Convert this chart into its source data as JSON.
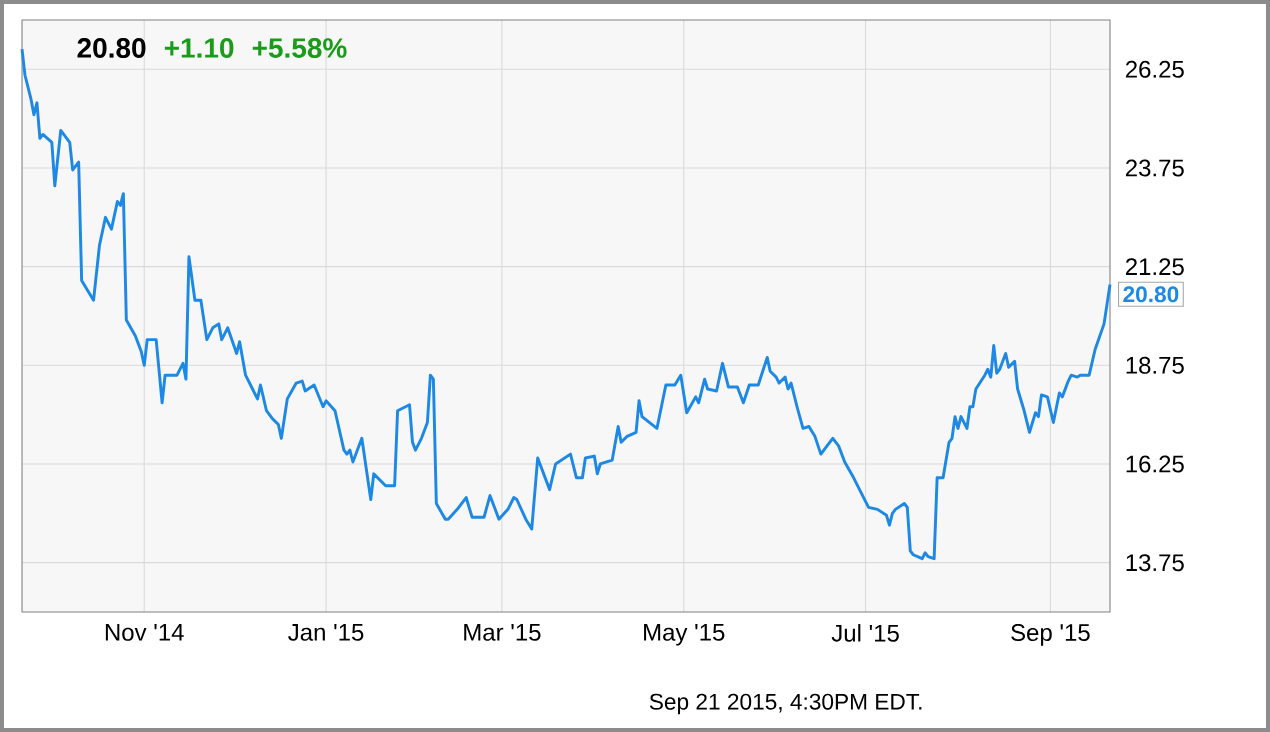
{
  "chart_data": {
    "type": "line",
    "color": "#1e88e5",
    "grid": true,
    "xlim": [
      "2014-09-21",
      "2015-09-21"
    ],
    "ylim": [
      12.5,
      27.5
    ],
    "xticks": [
      {
        "value": "2014-11-01",
        "label": "Nov '14"
      },
      {
        "value": "2015-01-01",
        "label": "Jan '15"
      },
      {
        "value": "2015-03-01",
        "label": "Mar '15"
      },
      {
        "value": "2015-05-01",
        "label": "May '15"
      },
      {
        "value": "2015-07-01",
        "label": "Jul '15"
      },
      {
        "value": "2015-09-01",
        "label": "Sep '15"
      }
    ],
    "yticks": [
      13.75,
      16.25,
      18.75,
      21.25,
      23.75,
      26.25
    ],
    "x": [
      "2014-09-21",
      "2014-09-22",
      "2014-09-24",
      "2014-09-25",
      "2014-09-26",
      "2014-09-27",
      "2014-09-28",
      "2014-10-01",
      "2014-10-02",
      "2014-10-04",
      "2014-10-07",
      "2014-10-08",
      "2014-10-10",
      "2014-10-11",
      "2014-10-15",
      "2014-10-17",
      "2014-10-19",
      "2014-10-21",
      "2014-10-23",
      "2014-10-24",
      "2014-10-25",
      "2014-10-26",
      "2014-10-29",
      "2014-10-31",
      "2014-11-01",
      "2014-11-02",
      "2014-11-05",
      "2014-11-07",
      "2014-11-08",
      "2014-11-12",
      "2014-11-14",
      "2014-11-15",
      "2014-11-16",
      "2014-11-18",
      "2014-11-20",
      "2014-11-22",
      "2014-11-24",
      "2014-11-26",
      "2014-11-27",
      "2014-11-29",
      "2014-12-02",
      "2014-12-03",
      "2014-12-05",
      "2014-12-07",
      "2014-12-09",
      "2014-12-10",
      "2014-12-12",
      "2014-12-14",
      "2014-12-16",
      "2014-12-17",
      "2014-12-19",
      "2014-12-22",
      "2014-12-24",
      "2014-12-25",
      "2014-12-28",
      "2014-12-31",
      "2015-01-01",
      "2015-01-04",
      "2015-01-07",
      "2015-01-08",
      "2015-01-09",
      "2015-01-10",
      "2015-01-13",
      "2015-01-16",
      "2015-01-17",
      "2015-01-21",
      "2015-01-24",
      "2015-01-25",
      "2015-01-29",
      "2015-01-30",
      "2015-01-31",
      "2015-02-02",
      "2015-02-04",
      "2015-02-05",
      "2015-02-06",
      "2015-02-07",
      "2015-02-10",
      "2015-02-11",
      "2015-02-14",
      "2015-02-17",
      "2015-02-19",
      "2015-02-23",
      "2015-02-25",
      "2015-02-26",
      "2015-02-28",
      "2015-03-03",
      "2015-03-05",
      "2015-03-06",
      "2015-03-09",
      "2015-03-11",
      "2015-03-13",
      "2015-03-17",
      "2015-03-19",
      "2015-03-24",
      "2015-03-26",
      "2015-03-28",
      "2015-03-29",
      "2015-04-01",
      "2015-04-02",
      "2015-04-03",
      "2015-04-07",
      "2015-04-09",
      "2015-04-10",
      "2015-04-12",
      "2015-04-15",
      "2015-04-16",
      "2015-04-17",
      "2015-04-22",
      "2015-04-25",
      "2015-04-28",
      "2015-04-30",
      "2015-05-02",
      "2015-05-05",
      "2015-05-06",
      "2015-05-08",
      "2015-05-09",
      "2015-05-12",
      "2015-05-14",
      "2015-05-16",
      "2015-05-19",
      "2015-05-21",
      "2015-05-23",
      "2015-05-26",
      "2015-05-29",
      "2015-05-30",
      "2015-06-01",
      "2015-06-02",
      "2015-06-04",
      "2015-06-05",
      "2015-06-06",
      "2015-06-08",
      "2015-06-10",
      "2015-06-12",
      "2015-06-14",
      "2015-06-16",
      "2015-06-18",
      "2015-06-20",
      "2015-06-22",
      "2015-06-24",
      "2015-06-27",
      "2015-06-30",
      "2015-07-02",
      "2015-07-05",
      "2015-07-08",
      "2015-07-09",
      "2015-07-10",
      "2015-07-11",
      "2015-07-14",
      "2015-07-15",
      "2015-07-16",
      "2015-07-17",
      "2015-07-20",
      "2015-07-21",
      "2015-07-22",
      "2015-07-24",
      "2015-07-25",
      "2015-07-27",
      "2015-07-29",
      "2015-07-30",
      "2015-07-31",
      "2015-08-01",
      "2015-08-02",
      "2015-08-04",
      "2015-08-05",
      "2015-08-06",
      "2015-08-07",
      "2015-08-10",
      "2015-08-11",
      "2015-08-12",
      "2015-08-13",
      "2015-08-14",
      "2015-08-15",
      "2015-08-17",
      "2015-08-18",
      "2015-08-20",
      "2015-08-21",
      "2015-08-23",
      "2015-08-25",
      "2015-08-27",
      "2015-08-28",
      "2015-08-29",
      "2015-08-31",
      "2015-09-02",
      "2015-09-04",
      "2015-09-05",
      "2015-09-07",
      "2015-09-08",
      "2015-09-10",
      "2015-09-11",
      "2015-09-14",
      "2015-09-16",
      "2015-09-19",
      "2015-09-20",
      "2015-09-21"
    ],
    "values": [
      26.76,
      26.1,
      25.5,
      25.1,
      25.4,
      24.5,
      24.6,
      24.4,
      23.3,
      24.7,
      24.4,
      23.7,
      23.9,
      20.9,
      20.4,
      21.8,
      22.5,
      22.2,
      22.9,
      22.8,
      23.1,
      19.9,
      19.5,
      19.1,
      18.75,
      19.4,
      19.4,
      17.8,
      18.5,
      18.5,
      18.8,
      18.4,
      21.5,
      20.4,
      20.4,
      19.4,
      19.7,
      19.8,
      19.4,
      19.7,
      19.05,
      19.35,
      18.5,
      18.2,
      17.9,
      18.25,
      17.6,
      17.4,
      17.25,
      16.9,
      17.9,
      18.3,
      18.35,
      18.1,
      18.25,
      17.7,
      17.85,
      17.6,
      16.6,
      16.5,
      16.6,
      16.3,
      16.9,
      15.35,
      16.0,
      15.7,
      15.7,
      17.6,
      17.75,
      16.8,
      16.6,
      16.9,
      17.3,
      18.5,
      18.4,
      15.25,
      14.85,
      14.85,
      15.1,
      15.4,
      14.9,
      14.9,
      15.45,
      15.25,
      14.85,
      15.1,
      15.4,
      15.35,
      14.85,
      14.6,
      16.4,
      15.6,
      16.25,
      16.5,
      15.9,
      15.9,
      16.4,
      16.45,
      16.0,
      16.25,
      16.35,
      17.2,
      16.8,
      16.95,
      17.05,
      17.85,
      17.45,
      17.15,
      18.25,
      18.25,
      18.5,
      17.55,
      17.95,
      17.8,
      18.4,
      18.15,
      18.1,
      18.8,
      18.2,
      18.2,
      17.8,
      18.25,
      18.25,
      18.95,
      18.6,
      18.45,
      18.3,
      18.45,
      18.15,
      18.3,
      17.7,
      17.15,
      17.2,
      16.95,
      16.5,
      16.7,
      16.9,
      16.7,
      16.3,
      15.9,
      15.45,
      15.15,
      15.1,
      14.95,
      14.7,
      15.0,
      15.1,
      15.25,
      15.15,
      14.05,
      13.95,
      13.85,
      14.0,
      13.9,
      13.85,
      15.9,
      15.9,
      16.8,
      16.9,
      17.45,
      17.15,
      17.45,
      17.15,
      17.7,
      17.7,
      18.15,
      18.5,
      18.65,
      18.45,
      19.25,
      18.55,
      18.65,
      19.05,
      18.7,
      18.85,
      18.15,
      17.65,
      17.05,
      17.55,
      17.45,
      18.0,
      17.95,
      17.3,
      18.05,
      17.95,
      18.35,
      18.5,
      18.45,
      18.5,
      18.5,
      19.15,
      19.8,
      20.3,
      20.8
    ],
    "annotations": [
      {
        "text": "20.80",
        "x": "2015-09-21",
        "y": 20.8
      },
      "20.80",
      "+1.10",
      "+5.58%",
      "Sep 21 2015, 4:30PM EDT."
    ]
  }
}
